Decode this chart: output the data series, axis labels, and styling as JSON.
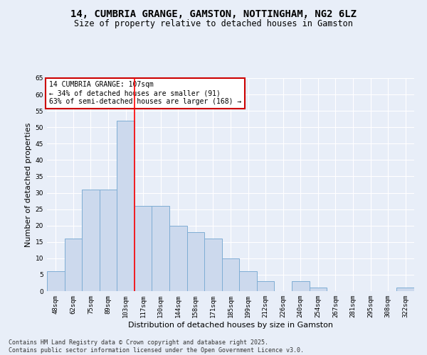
{
  "title": "14, CUMBRIA GRANGE, GAMSTON, NOTTINGHAM, NG2 6LZ",
  "subtitle": "Size of property relative to detached houses in Gamston",
  "xlabel": "Distribution of detached houses by size in Gamston",
  "ylabel": "Number of detached properties",
  "categories": [
    "48sqm",
    "62sqm",
    "75sqm",
    "89sqm",
    "103sqm",
    "117sqm",
    "130sqm",
    "144sqm",
    "158sqm",
    "171sqm",
    "185sqm",
    "199sqm",
    "212sqm",
    "226sqm",
    "240sqm",
    "254sqm",
    "267sqm",
    "281sqm",
    "295sqm",
    "308sqm",
    "322sqm"
  ],
  "values": [
    6,
    16,
    31,
    31,
    52,
    26,
    26,
    20,
    18,
    16,
    10,
    6,
    3,
    0,
    3,
    1,
    0,
    0,
    0,
    0,
    1
  ],
  "bar_color": "#ccd9ed",
  "bar_edge_color": "#7eadd4",
  "red_line_x": 4.5,
  "annotation_text": "14 CUMBRIA GRANGE: 107sqm\n← 34% of detached houses are smaller (91)\n63% of semi-detached houses are larger (168) →",
  "annotation_box_color": "#ffffff",
  "annotation_box_edge": "#cc0000",
  "ylim": [
    0,
    65
  ],
  "yticks": [
    0,
    5,
    10,
    15,
    20,
    25,
    30,
    35,
    40,
    45,
    50,
    55,
    60,
    65
  ],
  "background_color": "#e8eef8",
  "grid_color": "#ffffff",
  "footer_line1": "Contains HM Land Registry data © Crown copyright and database right 2025.",
  "footer_line2": "Contains public sector information licensed under the Open Government Licence v3.0.",
  "title_fontsize": 10,
  "subtitle_fontsize": 8.5,
  "axis_label_fontsize": 8,
  "tick_fontsize": 6.5,
  "annotation_fontsize": 7
}
